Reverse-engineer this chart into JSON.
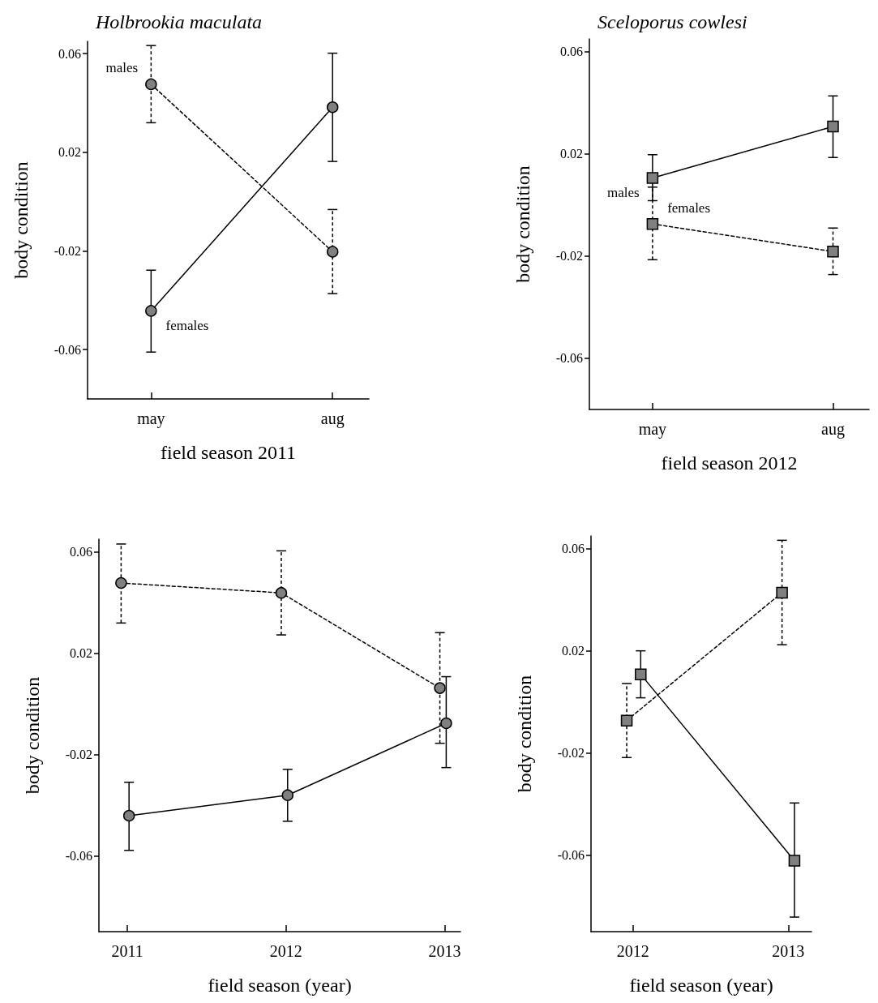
{
  "chart_data": [
    {
      "type": "line",
      "title": "Holbrookia maculata",
      "xlabel": "field season 2011",
      "ylabel": "body condition",
      "marker": "circle",
      "grid": false,
      "legend": false,
      "categories": [
        "may",
        "aug"
      ],
      "ylim": [
        -0.08,
        0.065
      ],
      "yticks": [
        -0.06,
        -0.02,
        0.02,
        0.06
      ],
      "series": [
        {
          "name": "males",
          "color": "#808080",
          "line_style": "dashed",
          "values": [
            0.0476,
            -0.0203
          ],
          "errors": [
            [
              0.032,
              0.0633
            ],
            [
              -0.0373,
              -0.0032
            ]
          ]
        },
        {
          "name": "females",
          "color": "#808080",
          "line_style": "solid",
          "values": [
            -0.0443,
            0.0383
          ],
          "errors": [
            [
              -0.061,
              -0.0278
            ],
            [
              0.0163,
              0.0602
            ]
          ]
        }
      ]
    },
    {
      "type": "line",
      "title": "Sceloporus cowlesi",
      "xlabel": "field season 2012",
      "ylabel": "body condition",
      "marker": "square",
      "grid": false,
      "legend": false,
      "categories": [
        "may",
        "aug"
      ],
      "ylim": [
        -0.08,
        0.065
      ],
      "yticks": [
        -0.06,
        -0.02,
        0.02,
        0.06
      ],
      "series": [
        {
          "name": "males",
          "color": "#808080",
          "line_style": "solid",
          "values": [
            0.0106,
            0.0307
          ],
          "errors": [
            [
              0.0017,
              0.0197
            ],
            [
              0.0186,
              0.0427
            ]
          ]
        },
        {
          "name": "females",
          "color": "#808080",
          "line_style": "dashed",
          "values": [
            -0.0074,
            -0.0182
          ],
          "errors": [
            [
              -0.0214,
              0.007
            ],
            [
              -0.0272,
              -0.009
            ]
          ]
        }
      ]
    },
    {
      "type": "line",
      "xlabel": "field season (year)",
      "ylabel": "body condition",
      "marker": "circle",
      "grid": false,
      "legend": false,
      "xlim": [
        2010.82,
        2013.1
      ],
      "xticks": [
        2011,
        2012,
        2013
      ],
      "ylim": [
        -0.09,
        0.065
      ],
      "yticks": [
        -0.06,
        -0.02,
        0.02,
        0.06
      ],
      "series": [
        {
          "color": "#808080",
          "line_style": "dashed",
          "x": [
            2010.96,
            2011.97,
            2012.97
          ],
          "values": [
            0.0477,
            0.0438,
            0.0062
          ],
          "errors": [
            [
              0.0319,
              0.0631
            ],
            [
              0.0272,
              0.0604
            ],
            [
              -0.0156,
              0.0281
            ]
          ]
        },
        {
          "color": "#808080",
          "line_style": "solid",
          "x": [
            2011.01,
            2012.01,
            2013.01
          ],
          "values": [
            -0.0442,
            -0.0361,
            -0.0077
          ],
          "errors": [
            [
              -0.0579,
              -0.031
            ],
            [
              -0.0464,
              -0.0259
            ],
            [
              -0.0252,
              0.0107
            ]
          ]
        }
      ]
    },
    {
      "type": "line",
      "xlabel": "field season (year)",
      "ylabel": "body condition",
      "marker": "square",
      "grid": false,
      "legend": false,
      "xlim": [
        2011.73,
        2013.15
      ],
      "xticks": [
        2012,
        2013
      ],
      "ylim": [
        -0.09,
        0.065
      ],
      "yticks": [
        -0.06,
        -0.02,
        0.02,
        0.06
      ],
      "series": [
        {
          "color": "#808080",
          "line_style": "dashed",
          "x": [
            2011.96,
            2012.96
          ],
          "values": [
            -0.0073,
            0.0428
          ],
          "errors": [
            [
              -0.0218,
              0.0072
            ],
            [
              0.0224,
              0.0633
            ]
          ]
        },
        {
          "color": "#808080",
          "line_style": "solid",
          "x": [
            2012.05,
            2013.04
          ],
          "values": [
            0.0108,
            -0.0622
          ],
          "errors": [
            [
              0.0016,
              0.02
            ],
            [
              -0.0843,
              -0.0396
            ]
          ]
        }
      ]
    }
  ]
}
